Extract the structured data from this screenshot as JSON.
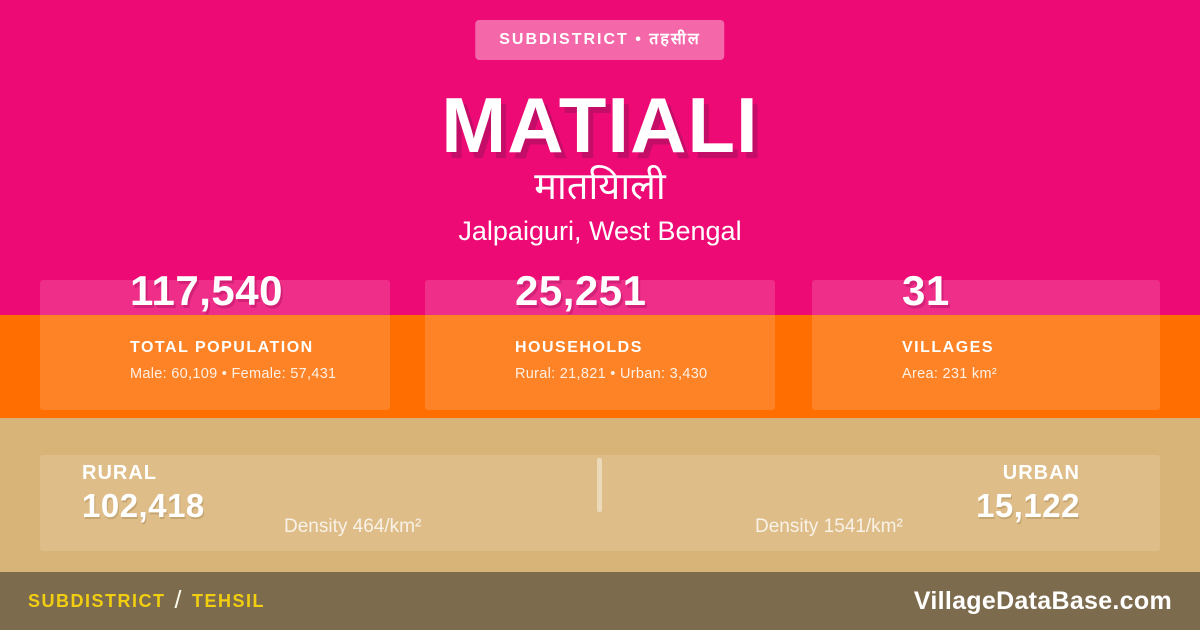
{
  "badge": {
    "label": "SUBDISTRICT • तहसील"
  },
  "title": "MATIALI",
  "title_native": "मातयिाली",
  "location": "Jalpaiguri, West Bengal",
  "stats": [
    {
      "value": "117,540",
      "label": "TOTAL POPULATION",
      "detail": "Male: 60,109 • Female: 57,431"
    },
    {
      "value": "25,251",
      "label": "HOUSEHOLDS",
      "detail": "Rural: 21,821 • Urban: 3,430"
    },
    {
      "value": "31",
      "label": "VILLAGES",
      "detail": "Area: 231 km²"
    }
  ],
  "rural_urban": {
    "rural": {
      "label": "RURAL",
      "value": "102,418",
      "density": "Density 464/km²"
    },
    "urban": {
      "label": "URBAN",
      "value": "15,122",
      "density": "Density 1541/km²"
    }
  },
  "footer": {
    "type_label": "SUBDISTRICT",
    "separator": "/",
    "type_label_alt": "TEHSIL",
    "site": "VillageDataBase.com"
  },
  "colors": {
    "pink": "#ED0A75",
    "orange": "#FE6E01",
    "tan": "#D9B478",
    "brown": "#7D6B4D",
    "yellow": "#F2CE10",
    "title_shadow": "#C30D67"
  }
}
